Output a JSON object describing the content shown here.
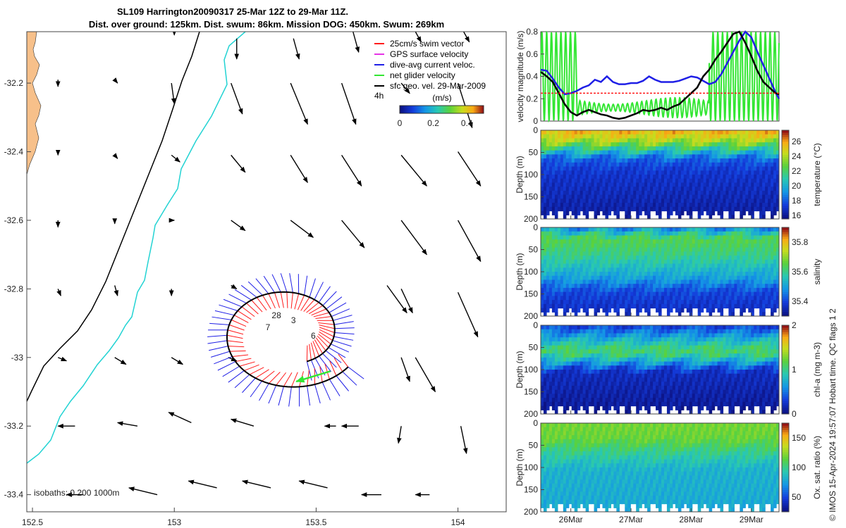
{
  "title": {
    "line1": "SL109 Harrington20090317 25-Mar 12Z to 29-Mar 11Z.",
    "line2": "Dist. over ground: 125km. Dist. swum: 86km. Mission DOG: 450km. Swum: 269km"
  },
  "side_label": "© IMOS 15-Apr-2024 19:57:07 Hobart time. QC flags 1  2",
  "colors": {
    "coast_fill": "#f7c08a",
    "isobath_200": "#000000",
    "isobath_1000": "#22d3d3",
    "swim_vector": "#ff1a1a",
    "dive_avg": "#1f1fe6",
    "net_glider": "#33e633",
    "track": "#000000"
  },
  "chart_data": [
    {
      "type": "map",
      "name": "glider-track-map",
      "xlim": [
        152.48,
        154.17
      ],
      "ylim": [
        -33.45,
        -32.05
      ],
      "xticks": [
        {
          "v": 152.5,
          "t": "152.5"
        },
        {
          "v": 153,
          "t": "153"
        },
        {
          "v": 153.5,
          "t": "153.5"
        },
        {
          "v": 154,
          "t": "154"
        }
      ],
      "yticks": [
        {
          "v": -32.2,
          "t": "-32.2"
        },
        {
          "v": -32.4,
          "t": "-32.4"
        },
        {
          "v": -32.6,
          "t": "-32.6"
        },
        {
          "v": -32.8,
          "t": "-32.8"
        },
        {
          "v": -33.0,
          "t": "-33"
        },
        {
          "v": -33.2,
          "t": "-33.2"
        },
        {
          "v": -33.4,
          "t": "-33.4"
        }
      ],
      "legend": [
        {
          "label": "25cm/s swim vector",
          "color": "#ff1a1a"
        },
        {
          "label": "GPS surface velocity",
          "color": "#e633e6"
        },
        {
          "label": "dive-avg current veloc.",
          "color": "#1f1fe6"
        },
        {
          "label": "net glider velocity",
          "color": "#33e633"
        },
        {
          "label": "sfc geo. vel. 29-Mar-2009",
          "color": "#000000"
        }
      ],
      "colorbar": {
        "label": "(m/s)",
        "prefix": "4h",
        "ticks": [
          {
            "v": 0,
            "t": "0"
          },
          {
            "v": 0.2,
            "t": "0.2"
          },
          {
            "v": 0.4,
            "t": "0.4"
          }
        ],
        "range": [
          0,
          0.5
        ]
      },
      "isobath_text": "isobaths: 0   200  1000m",
      "day_labels": [
        {
          "t": "28",
          "lon": 153.36,
          "lat": -32.885
        },
        {
          "t": "7",
          "lon": 153.33,
          "lat": -32.92
        },
        {
          "t": "3",
          "lon": 153.42,
          "lat": -32.9
        },
        {
          "t": "6",
          "lon": 153.49,
          "lat": -32.945
        }
      ],
      "geo_vectors_lonlat": [
        [
          152.59,
          -32.19,
          0.0,
          -0.02
        ],
        [
          152.79,
          -32.19,
          0.01,
          -0.01
        ],
        [
          152.99,
          -32.2,
          0.01,
          -0.06
        ],
        [
          153.2,
          -32.2,
          0.04,
          -0.09
        ],
        [
          153.41,
          -32.2,
          0.06,
          -0.12
        ],
        [
          153.59,
          -32.2,
          0.05,
          -0.12
        ],
        [
          153.8,
          -32.2,
          0.03,
          -0.03
        ],
        [
          153.0,
          -32.05,
          0.0,
          -0.01
        ],
        [
          153.22,
          -32.07,
          0.0,
          -0.06
        ],
        [
          153.42,
          -32.07,
          0.02,
          -0.06
        ],
        [
          153.63,
          -32.05,
          0.02,
          -0.06
        ],
        [
          153.85,
          -32.05,
          0.02,
          -0.03
        ],
        [
          154.02,
          -32.05,
          0.02,
          -0.03
        ],
        [
          154.0,
          -32.2,
          0.05,
          -0.13
        ],
        [
          154.0,
          -32.4,
          0.08,
          -0.1
        ],
        [
          154.0,
          -32.6,
          0.08,
          -0.12
        ],
        [
          154.0,
          -32.81,
          0.07,
          -0.13
        ],
        [
          152.59,
          -32.4,
          0.0,
          -0.01
        ],
        [
          152.79,
          -32.41,
          0.01,
          -0.01
        ],
        [
          152.99,
          -32.41,
          0.03,
          -0.02
        ],
        [
          153.2,
          -32.41,
          0.05,
          -0.05
        ],
        [
          153.41,
          -32.41,
          0.06,
          -0.08
        ],
        [
          153.59,
          -32.41,
          0.07,
          -0.09
        ],
        [
          153.8,
          -32.41,
          0.09,
          -0.09
        ],
        [
          152.59,
          -32.6,
          0.0,
          -0.02
        ],
        [
          152.79,
          -32.6,
          0.0,
          -0.01
        ],
        [
          152.99,
          -32.6,
          0.01,
          0.0
        ],
        [
          153.2,
          -32.6,
          0.05,
          -0.03
        ],
        [
          153.41,
          -32.6,
          0.08,
          -0.05
        ],
        [
          153.59,
          -32.6,
          0.08,
          -0.08
        ],
        [
          153.8,
          -32.6,
          0.09,
          -0.1
        ],
        [
          152.59,
          -32.8,
          0.01,
          -0.02
        ],
        [
          152.79,
          -32.79,
          0.01,
          -0.03
        ],
        [
          152.99,
          -32.8,
          0.0,
          -0.02
        ],
        [
          153.2,
          -32.79,
          0.02,
          -0.01
        ],
        [
          153.75,
          -32.79,
          0.07,
          -0.08
        ],
        [
          153.8,
          -32.8,
          0.04,
          -0.07
        ],
        [
          152.59,
          -33.0,
          0.03,
          -0.01
        ],
        [
          152.79,
          -33.0,
          0.04,
          -0.02
        ],
        [
          152.99,
          -33.0,
          0.04,
          -0.02
        ],
        [
          153.19,
          -33.0,
          0.03,
          -0.01
        ],
        [
          153.8,
          -33.0,
          0.03,
          -0.07
        ],
        [
          153.85,
          -33.0,
          0.07,
          -0.1
        ],
        [
          152.65,
          -33.2,
          -0.06,
          0.0
        ],
        [
          152.87,
          -33.2,
          -0.07,
          0.01
        ],
        [
          153.06,
          -33.19,
          -0.08,
          0.03
        ],
        [
          153.28,
          -33.2,
          -0.08,
          0.02
        ],
        [
          153.57,
          -33.2,
          -0.04,
          0.0
        ],
        [
          153.65,
          -33.2,
          -0.06,
          0.0
        ],
        [
          153.8,
          -33.2,
          -0.01,
          -0.05
        ],
        [
          154.01,
          -33.2,
          0.02,
          -0.08
        ],
        [
          152.68,
          -33.4,
          -0.06,
          0.0
        ],
        [
          152.94,
          -33.4,
          -0.1,
          0.02
        ],
        [
          153.15,
          -33.38,
          -0.1,
          0.02
        ],
        [
          153.34,
          -33.38,
          -0.1,
          0.02
        ],
        [
          153.54,
          -33.38,
          -0.1,
          0.02
        ],
        [
          153.73,
          -33.4,
          -0.07,
          0.0
        ],
        [
          153.9,
          -33.4,
          -0.05,
          0.0
        ]
      ],
      "net_glider_velocity": [
        [
          153.55,
          -33.04
        ],
        [
          153.43,
          -33.07
        ]
      ]
    },
    {
      "type": "line",
      "name": "velocity-magnitude",
      "ylabel": "velocity magnitude (m/s)",
      "ylim": [
        0,
        0.8
      ],
      "yticks": [
        {
          "v": 0,
          "t": "0"
        },
        {
          "v": 0.2,
          "t": "0.2"
        },
        {
          "v": 0.4,
          "t": "0.4"
        },
        {
          "v": 0.6,
          "t": "0.6"
        },
        {
          "v": 0.8,
          "t": "0.8"
        }
      ],
      "series": [
        {
          "name": "dive-avg current",
          "color": "#1f1fe6",
          "x": [
            25.5,
            25.6,
            25.7,
            25.8,
            25.9,
            26.0,
            26.1,
            26.2,
            26.3,
            26.4,
            26.5,
            26.6,
            26.7,
            26.8,
            26.9,
            27.0,
            27.1,
            27.2,
            27.3,
            27.4,
            27.5,
            27.6,
            27.7,
            27.8,
            27.9,
            28.0,
            28.1,
            28.2,
            28.3,
            28.4,
            28.5,
            28.6,
            28.7,
            28.8,
            28.9,
            29.0,
            29.1,
            29.2,
            29.3,
            29.4,
            29.46
          ],
          "values": [
            0.46,
            0.45,
            0.38,
            0.3,
            0.24,
            0.25,
            0.27,
            0.3,
            0.32,
            0.37,
            0.35,
            0.4,
            0.35,
            0.33,
            0.33,
            0.34,
            0.34,
            0.36,
            0.4,
            0.37,
            0.35,
            0.35,
            0.35,
            0.36,
            0.38,
            0.4,
            0.39,
            0.36,
            0.33,
            0.35,
            0.42,
            0.52,
            0.62,
            0.72,
            0.8,
            0.75,
            0.62,
            0.5,
            0.38,
            0.26,
            0.2
          ]
        },
        {
          "name": "track speed",
          "color": "#000000",
          "x": [
            25.5,
            25.6,
            25.7,
            25.8,
            25.9,
            26.0,
            26.1,
            26.2,
            26.3,
            26.4,
            26.5,
            26.6,
            26.7,
            26.8,
            26.9,
            27.0,
            27.1,
            27.2,
            27.3,
            27.4,
            27.5,
            27.6,
            27.7,
            27.8,
            27.9,
            28.0,
            28.1,
            28.2,
            28.3,
            28.4,
            28.5,
            28.6,
            28.7,
            28.8,
            28.9,
            29.0,
            29.1,
            29.2,
            29.3,
            29.4,
            29.46
          ],
          "values": [
            0.44,
            0.4,
            0.35,
            0.25,
            0.15,
            0.08,
            0.05,
            0.08,
            0.1,
            0.08,
            0.06,
            0.05,
            0.03,
            0.02,
            0.03,
            0.05,
            0.07,
            0.1,
            0.09,
            0.1,
            0.12,
            0.1,
            0.13,
            0.15,
            0.2,
            0.25,
            0.3,
            0.4,
            0.46,
            0.55,
            0.62,
            0.7,
            0.78,
            0.8,
            0.7,
            0.58,
            0.45,
            0.35,
            0.3,
            0.25,
            0.24
          ]
        },
        {
          "name": "swim vector",
          "color": "#ff1a1a",
          "x": [
            25.5,
            29.46
          ],
          "values": [
            0.25,
            0.25
          ]
        }
      ]
    },
    {
      "type": "heatmap",
      "name": "temperature",
      "ylabel": "Depth (m)",
      "ylim": [
        0,
        200
      ],
      "yticks": [
        {
          "v": 0,
          "t": "0"
        },
        {
          "v": 50,
          "t": "50"
        },
        {
          "v": 100,
          "t": "100"
        },
        {
          "v": 150,
          "t": "150"
        },
        {
          "v": 200,
          "t": "200"
        }
      ],
      "colorbar": {
        "label": "temperature (°C)",
        "range": [
          15.5,
          27.5
        ],
        "ticks": [
          {
            "v": 16,
            "t": "16"
          },
          {
            "v": 18,
            "t": "18"
          },
          {
            "v": 20,
            "t": "20"
          },
          {
            "v": 22,
            "t": "22"
          },
          {
            "v": 24,
            "t": "24"
          },
          {
            "v": 26,
            "t": "26"
          }
        ]
      },
      "profile": [
        [
          0,
          25.5
        ],
        [
          20,
          24
        ],
        [
          40,
          21
        ],
        [
          60,
          18
        ],
        [
          90,
          17
        ],
        [
          200,
          16
        ]
      ]
    },
    {
      "type": "heatmap",
      "name": "salinity",
      "ylabel": "Depth (m)",
      "ylim": [
        0,
        200
      ],
      "yticks": [
        {
          "v": 0,
          "t": "0"
        },
        {
          "v": 50,
          "t": "50"
        },
        {
          "v": 100,
          "t": "100"
        },
        {
          "v": 150,
          "t": "150"
        },
        {
          "v": 200,
          "t": "200"
        }
      ],
      "colorbar": {
        "label": "salinity",
        "range": [
          35.3,
          35.9
        ],
        "ticks": [
          {
            "v": 35.4,
            "t": "35.4"
          },
          {
            "v": 35.6,
            "t": "35.6"
          },
          {
            "v": 35.8,
            "t": "35.8"
          }
        ]
      },
      "profile": [
        [
          0,
          35.5
        ],
        [
          20,
          35.65
        ],
        [
          60,
          35.6
        ],
        [
          110,
          35.5
        ],
        [
          140,
          35.4
        ],
        [
          200,
          35.35
        ]
      ]
    },
    {
      "type": "heatmap",
      "name": "chl-a",
      "ylabel": "Depth (m)",
      "ylim": [
        0,
        200
      ],
      "yticks": [
        {
          "v": 0,
          "t": "0"
        },
        {
          "v": 50,
          "t": "50"
        },
        {
          "v": 100,
          "t": "100"
        },
        {
          "v": 150,
          "t": "150"
        },
        {
          "v": 200,
          "t": "200"
        }
      ],
      "colorbar": {
        "label": "chl-a (mg m-3)",
        "range": [
          0,
          2
        ],
        "ticks": [
          {
            "v": 0,
            "t": "0"
          },
          {
            "v": 1,
            "t": "1"
          },
          {
            "v": 2,
            "t": "2"
          }
        ]
      },
      "profile": [
        [
          0,
          0.35
        ],
        [
          30,
          0.8
        ],
        [
          55,
          1.15
        ],
        [
          75,
          0.75
        ],
        [
          100,
          0.2
        ],
        [
          200,
          0.05
        ]
      ]
    },
    {
      "type": "heatmap",
      "name": "oxygen-saturation",
      "ylabel": "Depth (m)",
      "ylim": [
        0,
        200
      ],
      "yticks": [
        {
          "v": 0,
          "t": "0"
        },
        {
          "v": 50,
          "t": "50"
        },
        {
          "v": 100,
          "t": "100"
        },
        {
          "v": 150,
          "t": "150"
        },
        {
          "v": 200,
          "t": "200"
        }
      ],
      "colorbar": {
        "label": "Ox. sat. ratio (%)",
        "range": [
          25,
          175
        ],
        "ticks": [
          {
            "v": 50,
            "t": "50"
          },
          {
            "v": 100,
            "t": "100"
          },
          {
            "v": 150,
            "t": "150"
          }
        ]
      },
      "profile": [
        [
          0,
          120
        ],
        [
          30,
          118
        ],
        [
          60,
          100
        ],
        [
          100,
          82
        ],
        [
          200,
          78
        ]
      ]
    },
    {
      "type": "axis",
      "name": "time-axis",
      "xlim": [
        25.5,
        29.46
      ],
      "ticks": [
        {
          "v": 26,
          "t": "26Mar"
        },
        {
          "v": 27,
          "t": "27Mar"
        },
        {
          "v": 28,
          "t": "28Mar"
        },
        {
          "v": 29,
          "t": "29Mar"
        }
      ]
    }
  ]
}
